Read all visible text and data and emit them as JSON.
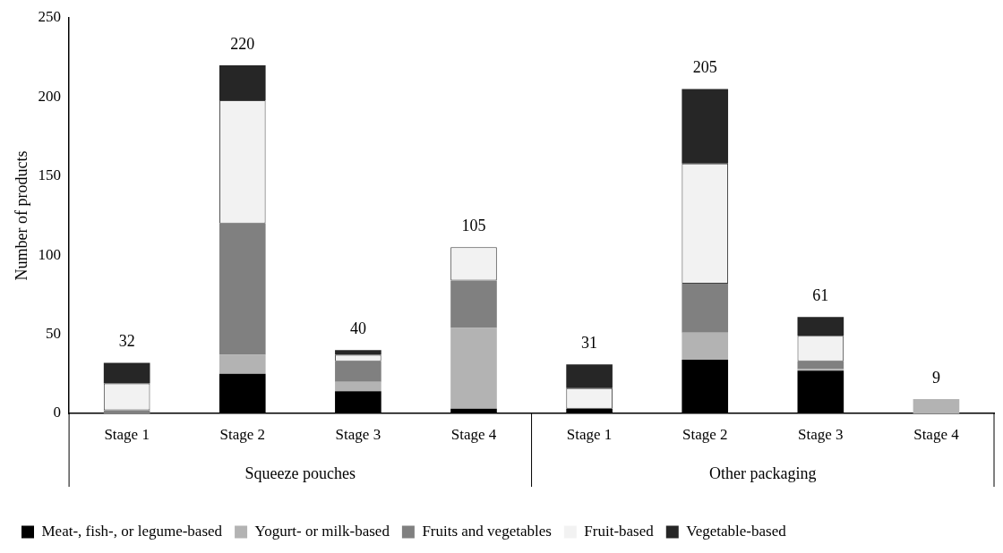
{
  "chart_data": {
    "type": "bar",
    "stacked": true,
    "ylabel": "Number of products",
    "categories": [
      "Stage 1",
      "Stage 2",
      "Stage 3",
      "Stage 4",
      "Stage 1",
      "Stage 2",
      "Stage 3",
      "Stage 4"
    ],
    "annotations": [
      "Squeeze pouches",
      "Other packaging"
    ],
    "series": [
      {
        "name": "Meat-, fish-, or legume-based",
        "color": "#000000",
        "values": [
          0,
          25,
          14,
          3,
          3,
          34,
          27,
          0
        ]
      },
      {
        "name": "Yogurt- or milk-based",
        "color": "#b3b3b3",
        "values": [
          0,
          12,
          6,
          51,
          0,
          17,
          1,
          9
        ]
      },
      {
        "name": "Fruits and vegetables",
        "color": "#808080",
        "values": [
          2,
          83,
          13,
          30,
          0,
          31,
          5,
          0
        ]
      },
      {
        "name": "Fruit-based",
        "color": "#f2f2f2",
        "values": [
          17,
          78,
          4,
          21,
          13,
          76,
          16,
          0
        ]
      },
      {
        "name": "Vegetable-based",
        "color": "#262626",
        "values": [
          13,
          22,
          3,
          0,
          15,
          47,
          12,
          0
        ]
      }
    ],
    "totals": [
      "32",
      "220",
      "40",
      "105",
      "31",
      "205",
      "61",
      "9"
    ],
    "ylim": [
      0,
      250
    ],
    "yticks": [
      0,
      50,
      100,
      150,
      200,
      250
    ],
    "grid": false,
    "legend": "bottom"
  }
}
